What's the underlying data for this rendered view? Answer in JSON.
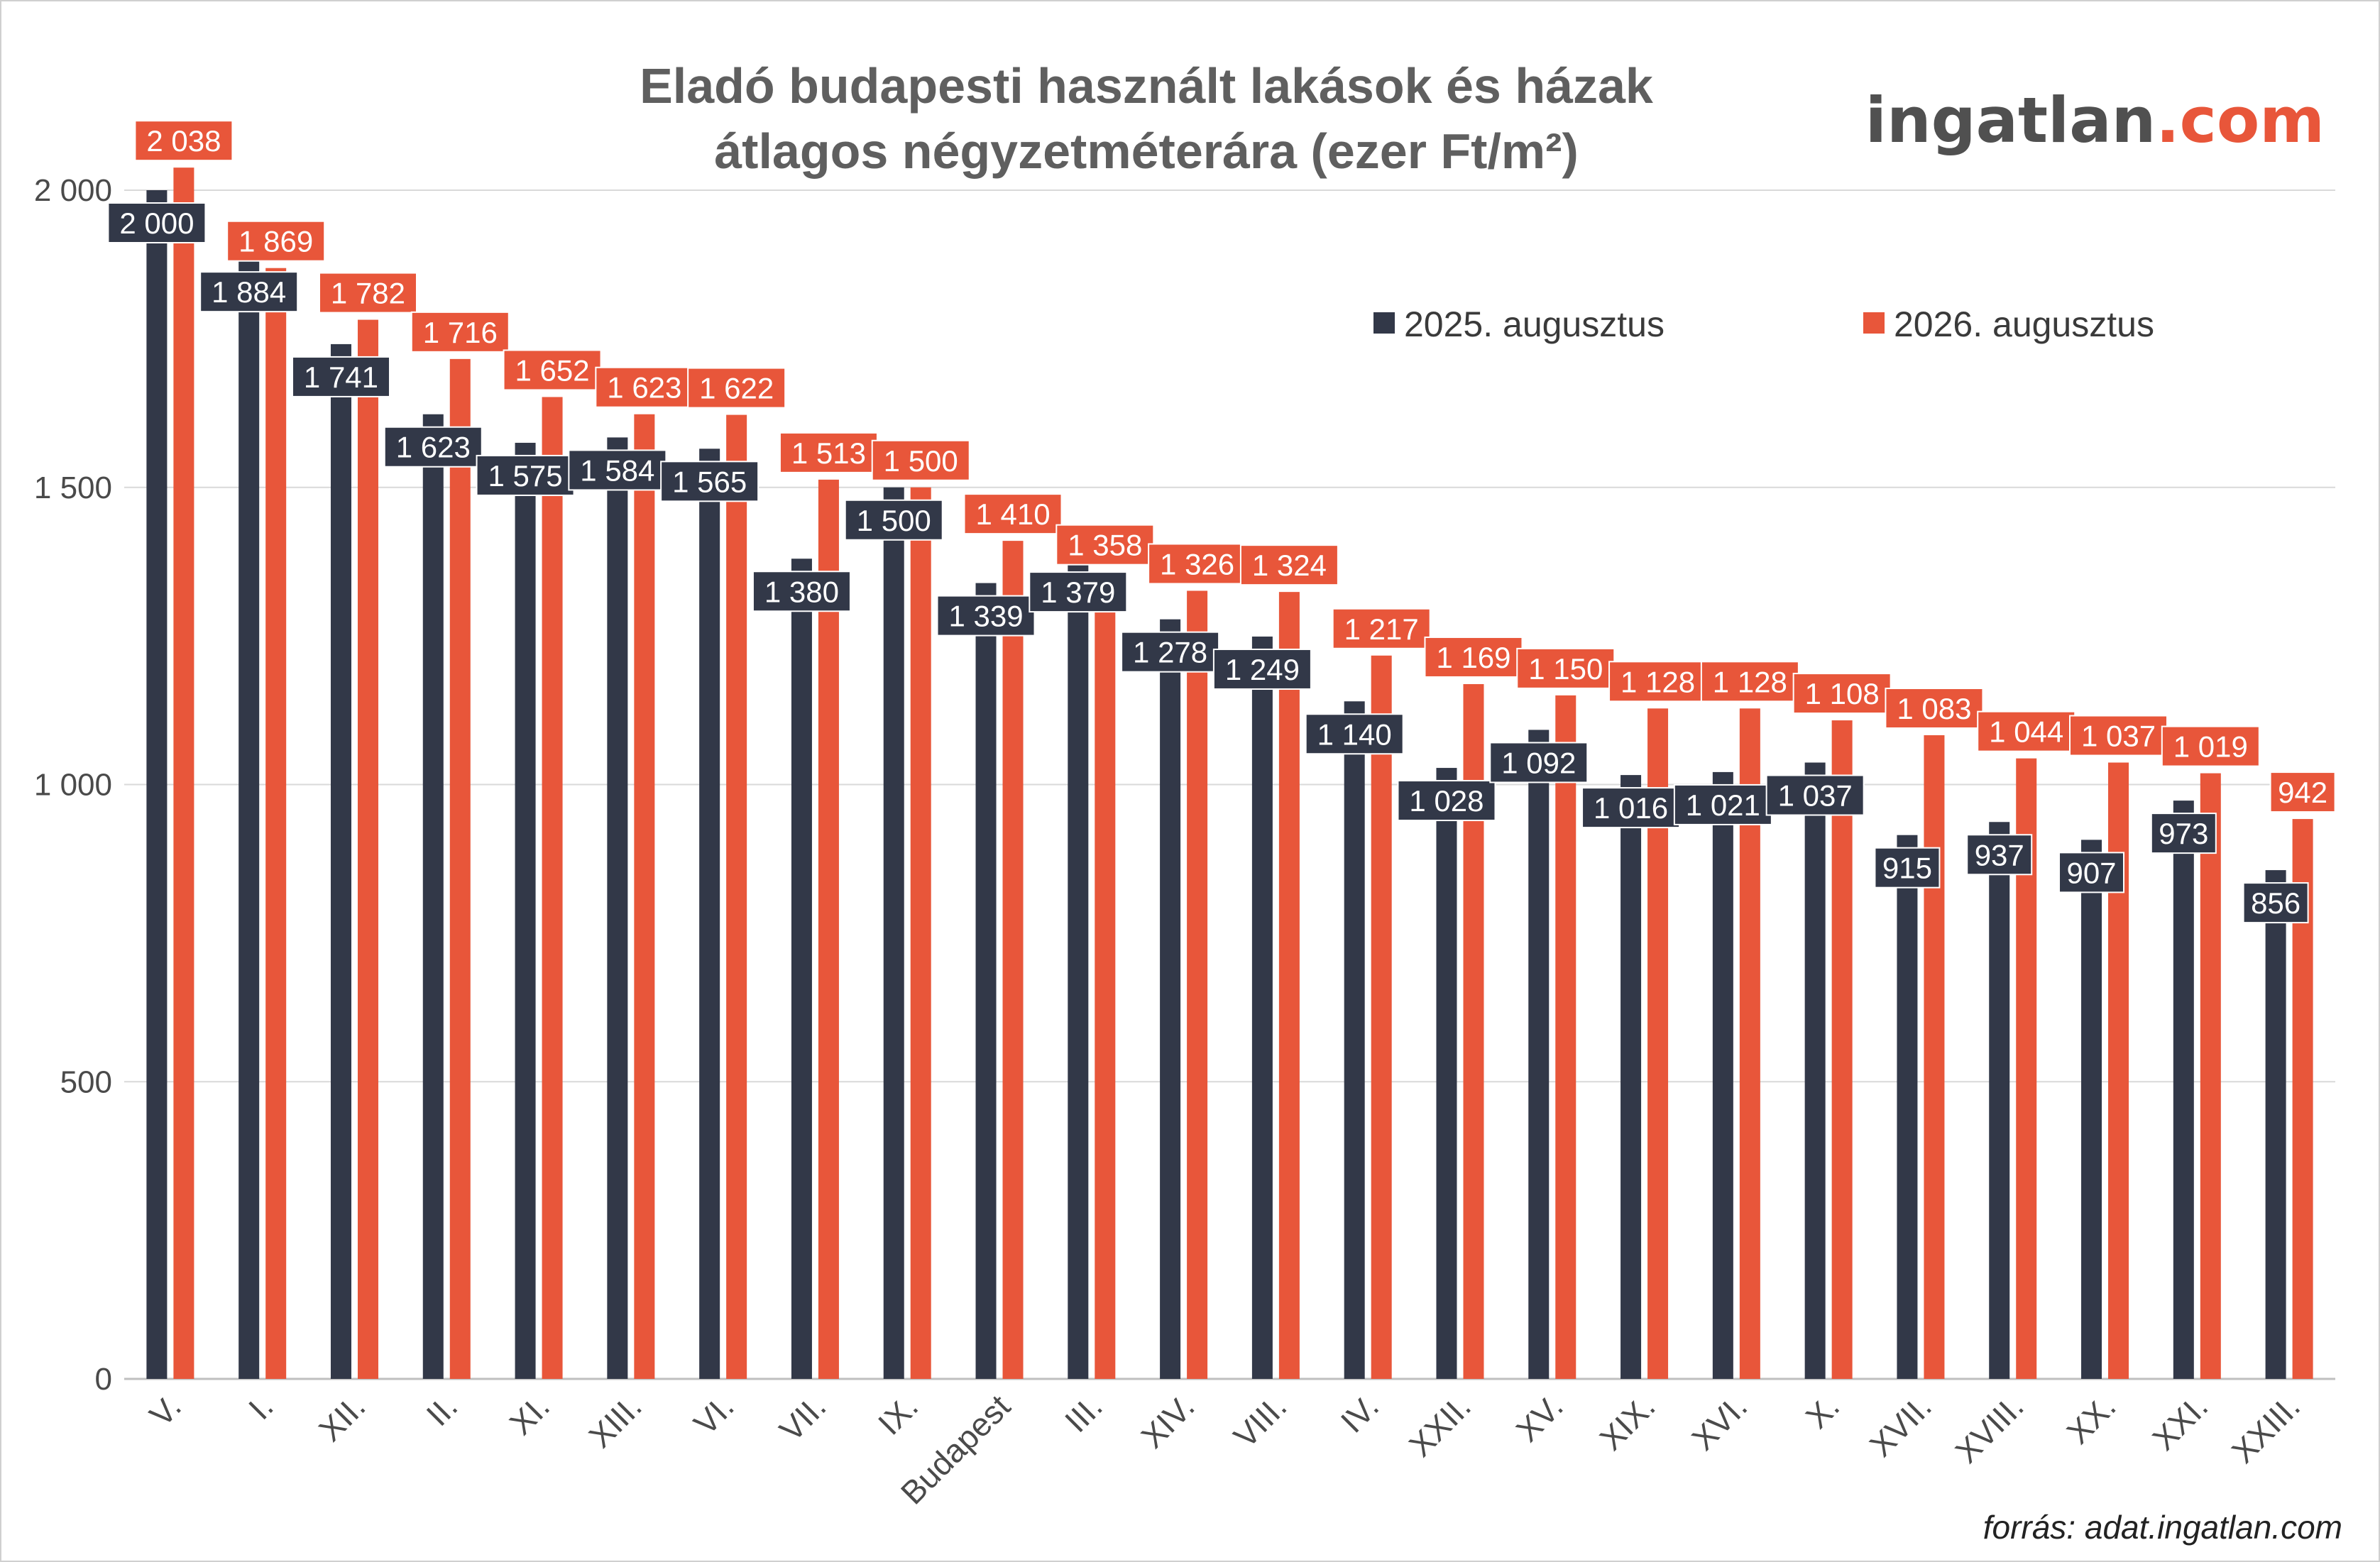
{
  "colors": {
    "series_2025": "#323848",
    "series_2026": "#e8563a",
    "grid": "#d9d9d9",
    "axis": "#bfbfbf"
  },
  "logo": {
    "part1": "ingatlan",
    "part2": ".com"
  },
  "source": "forrás: adat.ingatlan.com",
  "chart_data": {
    "type": "bar",
    "title": [
      "Eladó budapesti használt lakások és házak",
      "átlagos négyzetméterára (ezer Ft/m²)"
    ],
    "categories": [
      "V.",
      "I.",
      "XII.",
      "II.",
      "XI.",
      "XIII.",
      "VI.",
      "VII.",
      "IX.",
      "Budapest",
      "III.",
      "XIV.",
      "VIII.",
      "IV.",
      "XXII.",
      "XV.",
      "XIX.",
      "XVI.",
      "X.",
      "XVII.",
      "XVIII.",
      "XX.",
      "XXI.",
      "XXIII."
    ],
    "series": [
      {
        "name": "2025. augusztus",
        "values": [
          2000,
          1884,
          1741,
          1623,
          1575,
          1584,
          1565,
          1380,
          1500,
          1339,
          1379,
          1278,
          1249,
          1140,
          1028,
          1092,
          1016,
          1021,
          1037,
          915,
          937,
          907,
          973,
          856
        ]
      },
      {
        "name": "2026. augusztus",
        "values": [
          2038,
          1869,
          1782,
          1716,
          1652,
          1623,
          1622,
          1513,
          1500,
          1410,
          1358,
          1326,
          1324,
          1217,
          1169,
          1150,
          1128,
          1128,
          1108,
          1083,
          1044,
          1037,
          1019,
          942
        ]
      }
    ],
    "yticks": [
      0,
      500,
      1000,
      1500,
      2000
    ],
    "ytick_labels": [
      "0",
      "500",
      "1 000",
      "1 500",
      "2 000"
    ],
    "ylim": [
      0,
      2000
    ],
    "grid": true,
    "legend": "top-right"
  }
}
